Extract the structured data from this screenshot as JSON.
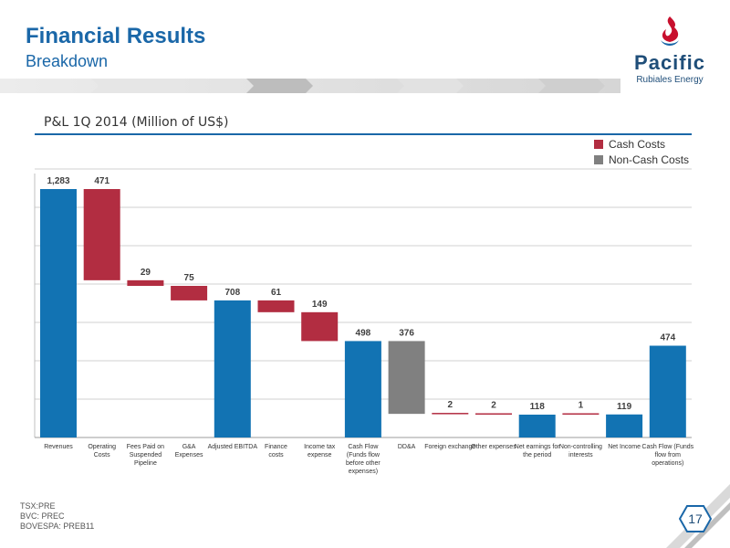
{
  "header": {
    "title": "Financial Results",
    "subtitle": "Breakdown"
  },
  "logo": {
    "word": "Pacific",
    "sub": "Rubiales Energy"
  },
  "colors": {
    "brand_blue": "#1a67a8",
    "total_bar": "#1273b3",
    "cash_cost": "#b22d41",
    "non_cash_cost": "#808080",
    "logo_red": "#c8102e"
  },
  "chart_data": {
    "type": "bar",
    "subtype": "waterfall",
    "title": "P&L 1Q 2014 (Million of US$)",
    "ylim": [
      0,
      1283
    ],
    "grid": true,
    "legend_position": "top-right",
    "legend": [
      {
        "name": "Cash Costs",
        "color": "#b22d41"
      },
      {
        "name": "Non-Cash Costs",
        "color": "#808080"
      }
    ],
    "categories": [
      "Revenues",
      "Operating Costs",
      "Fees Paid on Suspended Pipeline",
      "G&A Expenses",
      "Adjusted EBITDA",
      "Finance costs",
      "Income tax expense",
      "Cash Flow (Funds flow before other expenses)",
      "DD&A",
      "Foreign exchange",
      "Other expenses",
      "Net earnings for the period",
      "Non-controlling interests",
      "Net income",
      "Cash Flow (Funds flow from operations)"
    ],
    "category_lines": [
      [
        "Revenues"
      ],
      [
        "Operating",
        "Costs"
      ],
      [
        "Fees Paid on",
        "Suspended",
        "Pipeline"
      ],
      [
        "G&A",
        "Expenses"
      ],
      [
        "Adjusted EBITDA"
      ],
      [
        "Finance",
        "costs"
      ],
      [
        "Income tax",
        "expense"
      ],
      [
        "Cash Flow",
        "(Funds flow",
        "before other",
        "expenses)"
      ],
      [
        "DD&A"
      ],
      [
        "Foreign exchange"
      ],
      [
        "Other expenses"
      ],
      [
        "Net earnings for",
        "the period"
      ],
      [
        "Non-controlling",
        "interests"
      ],
      [
        "Net Income"
      ],
      [
        "Cash Flow (Funds",
        "flow from",
        "operations)"
      ]
    ],
    "bars": [
      {
        "kind": "total",
        "start": 0,
        "end": 1283,
        "label": "1,283"
      },
      {
        "kind": "cash",
        "start": 1283,
        "end": 812,
        "label": "471"
      },
      {
        "kind": "cash",
        "start": 812,
        "end": 783,
        "label": "29"
      },
      {
        "kind": "cash",
        "start": 783,
        "end": 708,
        "label": "75"
      },
      {
        "kind": "total",
        "start": 0,
        "end": 708,
        "label": "708"
      },
      {
        "kind": "cash",
        "start": 708,
        "end": 647,
        "label": "61"
      },
      {
        "kind": "cash",
        "start": 647,
        "end": 498,
        "label": "149"
      },
      {
        "kind": "total",
        "start": 0,
        "end": 498,
        "label": "498"
      },
      {
        "kind": "noncash",
        "start": 498,
        "end": 122,
        "label": "376"
      },
      {
        "kind": "cash",
        "start": 122,
        "end": 120,
        "label": "2"
      },
      {
        "kind": "cash",
        "start": 120,
        "end": 118,
        "label": "2"
      },
      {
        "kind": "total",
        "start": 0,
        "end": 118,
        "label": "118"
      },
      {
        "kind": "cash",
        "start": 118,
        "end": 119,
        "label": "1"
      },
      {
        "kind": "total",
        "start": 0,
        "end": 119,
        "label": "119"
      },
      {
        "kind": "total",
        "start": 0,
        "end": 474,
        "label": "474"
      }
    ]
  },
  "footer": {
    "lines": [
      "TSX:PRE",
      "BVC: PREC",
      "BOVESPA: PREB11"
    ]
  },
  "page_number": "17"
}
